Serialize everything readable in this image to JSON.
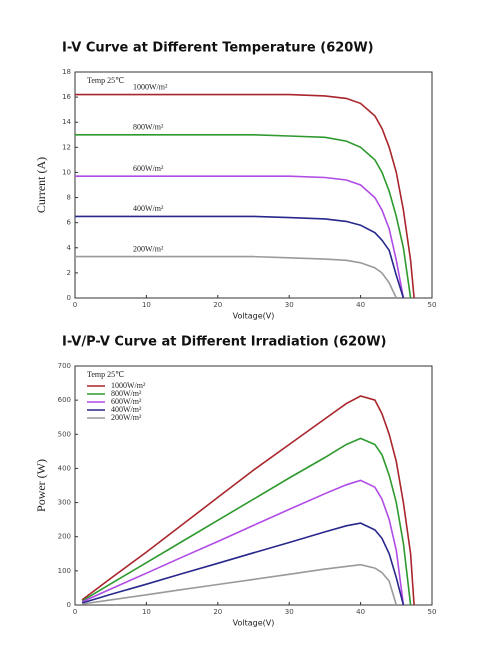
{
  "chart_data": [
    {
      "type": "line",
      "title": "I-V Curve at Different Temperature (620W)",
      "x_label": "Voltage(V)",
      "y_label": "Current (A)",
      "annotation": "Temp 25℃",
      "legend": "on-line",
      "x": [
        0,
        5,
        10,
        15,
        20,
        25,
        30,
        35,
        38,
        40,
        42,
        43,
        44,
        45,
        46,
        47,
        47.5
      ],
      "series": [
        {
          "name": "1000W/m²",
          "color": "#a8262c",
          "values": [
            16.2,
            16.2,
            16.2,
            16.2,
            16.2,
            16.2,
            16.2,
            16.1,
            15.9,
            15.5,
            14.5,
            13.5,
            12,
            10,
            7,
            3,
            0
          ]
        },
        {
          "name": "800W/m²",
          "color": "#2e9a2e",
          "values": [
            13,
            13,
            13,
            13,
            13,
            13,
            12.9,
            12.8,
            12.5,
            12,
            11,
            10,
            8.5,
            6.5,
            4,
            0,
            null
          ]
        },
        {
          "name": "600W/m²",
          "color": "#b04be6",
          "values": [
            9.7,
            9.7,
            9.7,
            9.7,
            9.7,
            9.7,
            9.7,
            9.6,
            9.4,
            9,
            8,
            7,
            5.5,
            3,
            0,
            null,
            null
          ]
        },
        {
          "name": "400W/m²",
          "color": "#27278c",
          "values": [
            6.5,
            6.5,
            6.5,
            6.5,
            6.5,
            6.5,
            6.4,
            6.3,
            6.1,
            5.8,
            5.2,
            4.6,
            3.8,
            1.8,
            0,
            null,
            null
          ]
        },
        {
          "name": "200W/m²",
          "color": "#9a9a9a",
          "values": [
            3.3,
            3.3,
            3.3,
            3.3,
            3.3,
            3.3,
            3.2,
            3.1,
            3,
            2.8,
            2.4,
            2,
            1.2,
            0,
            null,
            null,
            null
          ]
        }
      ],
      "xlim": [
        0,
        50
      ],
      "ylim": [
        0,
        18
      ],
      "xticks": [
        0,
        10,
        20,
        30,
        40,
        50
      ],
      "yticks": [
        0,
        2,
        4,
        6,
        8,
        10,
        12,
        14,
        16,
        18
      ]
    },
    {
      "type": "line",
      "title": "I-V/P-V Curve at Different Irradiation (620W)",
      "x_label": "Voltage(V)",
      "y_label": "Power (W)",
      "annotation": "Temp 25℃",
      "legend": "upper left",
      "x": [
        1,
        5,
        10,
        15,
        20,
        25,
        30,
        35,
        38,
        40,
        42,
        43,
        44,
        45,
        46,
        47,
        47.5
      ],
      "series": [
        {
          "name": "1000W/m²",
          "color": "#a8262c",
          "values": [
            15,
            78,
            155,
            235,
            315,
            395,
            470,
            545,
            590,
            612,
            600,
            560,
            500,
            420,
            300,
            150,
            0
          ]
        },
        {
          "name": "800W/m²",
          "color": "#2e9a2e",
          "values": [
            12,
            62,
            124,
            186,
            248,
            310,
            372,
            432,
            470,
            488,
            470,
            440,
            380,
            300,
            180,
            0,
            null
          ]
        },
        {
          "name": "600W/m²",
          "color": "#b04be6",
          "values": [
            9,
            47,
            93,
            140,
            186,
            233,
            280,
            326,
            352,
            365,
            345,
            310,
            250,
            160,
            0,
            null,
            null
          ]
        },
        {
          "name": "400W/m²",
          "color": "#27278c",
          "values": [
            6,
            31,
            61,
            92,
            122,
            153,
            183,
            214,
            232,
            240,
            220,
            195,
            150,
            80,
            0,
            null,
            null
          ]
        },
        {
          "name": "200W/m²",
          "color": "#9a9a9a",
          "values": [
            3,
            15,
            30,
            45,
            60,
            75,
            90,
            105,
            113,
            118,
            108,
            95,
            70,
            0,
            null,
            null,
            null
          ]
        }
      ],
      "xlim": [
        0,
        50
      ],
      "ylim": [
        0,
        700
      ],
      "xticks": [
        0,
        10,
        20,
        30,
        40,
        50
      ],
      "yticks": [
        0,
        100,
        200,
        300,
        400,
        500,
        600,
        700
      ]
    }
  ]
}
